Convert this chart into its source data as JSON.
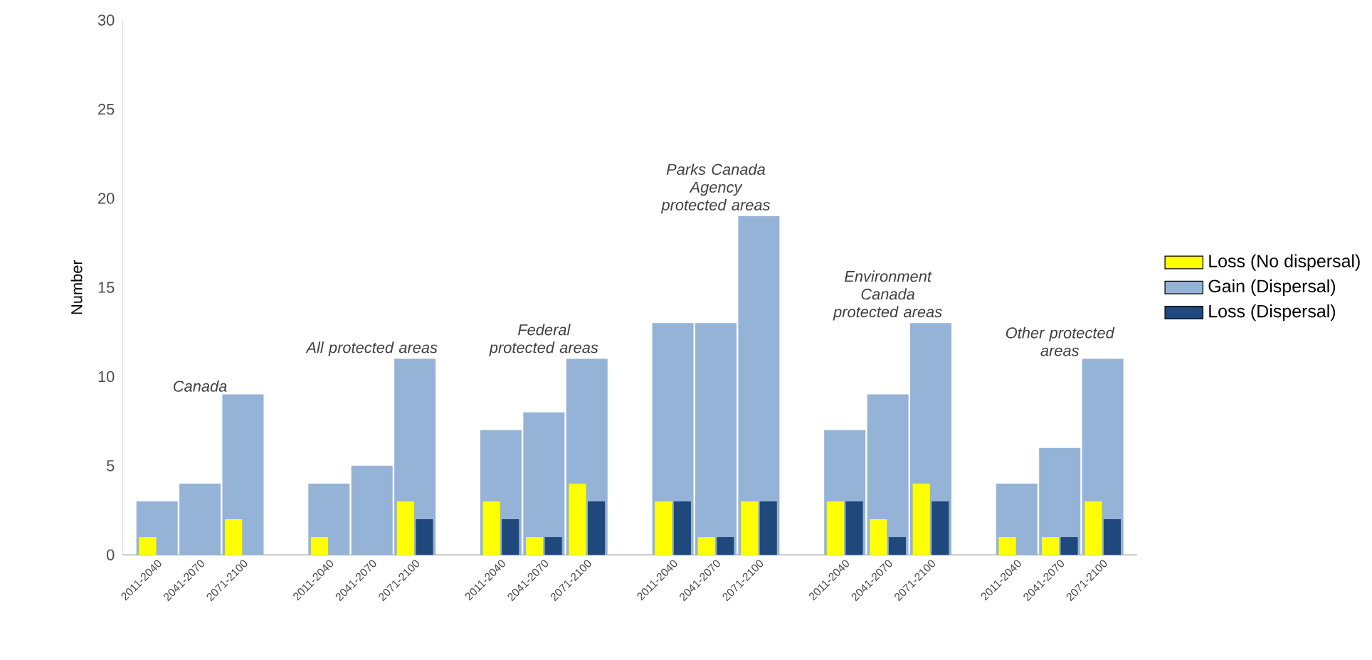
{
  "chart_data": {
    "type": "bar",
    "ylabel": "Number",
    "categories": [
      "2011-2040",
      "2041-2070",
      "2071-2100",
      null,
      "2011-2040",
      "2041-2070",
      "2071-2100",
      null,
      "2011-2040",
      "2041-2070",
      "2071-2100",
      null,
      "2011-2040",
      "2041-2070",
      "2071-2100",
      null,
      "2011-2040",
      "2041-2070",
      "2071-2100",
      null,
      "2011-2040",
      "2041-2070",
      "2071-2100"
    ],
    "series": [
      {
        "name": "Loss (No dispersal)",
        "color": "#ffff00",
        "values": [
          1,
          0,
          2,
          null,
          1,
          0,
          3,
          null,
          3,
          1,
          4,
          null,
          3,
          1,
          3,
          null,
          3,
          2,
          4,
          null,
          1,
          1,
          3
        ]
      },
      {
        "name": "Gain (Dispersal)",
        "color": "#95b3d7",
        "values": [
          3,
          4,
          9,
          null,
          4,
          5,
          11,
          null,
          7,
          8,
          11,
          null,
          13,
          13,
          19,
          null,
          7,
          9,
          13,
          null,
          4,
          6,
          11
        ]
      },
      {
        "name": "Loss (Dispersal)",
        "color": "#1f497d",
        "values": [
          0,
          0,
          0,
          null,
          0,
          0,
          2,
          null,
          2,
          1,
          3,
          null,
          3,
          1,
          3,
          null,
          3,
          1,
          3,
          null,
          0,
          1,
          2
        ]
      }
    ],
    "annotations": [
      "*Canada*",
      "*All protected areas*",
      "*Federal protected areas*",
      "*Parks Canada Agency protected areas*",
      "*Environment Canada protected areas*",
      "*Other protected areas*"
    ],
    "ylim": [
      0,
      30
    ],
    "yticks": [
      0,
      5,
      10,
      15,
      20,
      25,
      30
    ],
    "grid": false,
    "legend": "right"
  }
}
